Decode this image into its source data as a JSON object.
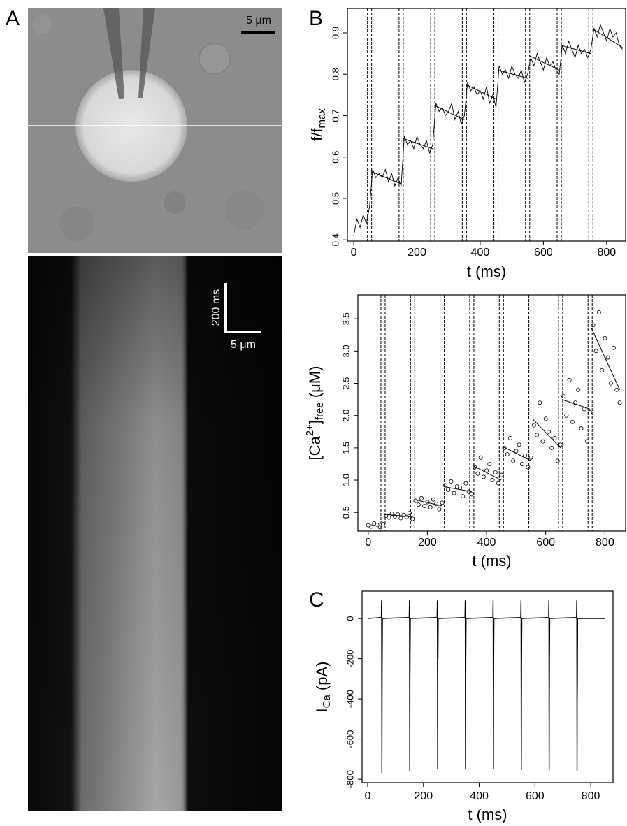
{
  "panel_labels": [
    "A",
    "B",
    "C"
  ],
  "image_labels": {
    "scale_top": "5 μm",
    "scale_time": "200 ms",
    "scale_space": "5 μm"
  },
  "chart_data": [
    {
      "type": "line",
      "x_label": "t (ms)",
      "y_label": [
        "f/f",
        "max"
      ],
      "xlim": [
        -20,
        860
      ],
      "ylim": [
        0.397,
        0.959
      ],
      "xticks": [
        0,
        200,
        400,
        600,
        800
      ],
      "yticks": [
        0.4,
        0.5,
        0.6,
        0.7,
        0.8,
        0.9
      ],
      "vlines": [
        50,
        150,
        250,
        350,
        450,
        550,
        650,
        750
      ],
      "x": [
        0,
        10,
        20,
        30,
        40,
        50,
        60,
        70,
        80,
        90,
        100,
        110,
        120,
        130,
        140,
        150,
        160,
        170,
        180,
        190,
        200,
        210,
        220,
        230,
        240,
        250,
        260,
        270,
        280,
        290,
        300,
        310,
        320,
        330,
        340,
        350,
        360,
        370,
        380,
        390,
        400,
        410,
        420,
        430,
        440,
        450,
        460,
        470,
        480,
        490,
        500,
        510,
        520,
        530,
        540,
        550,
        560,
        570,
        580,
        590,
        600,
        610,
        620,
        630,
        640,
        650,
        660,
        670,
        680,
        690,
        700,
        710,
        720,
        730,
        740,
        750,
        760,
        770,
        780,
        790,
        800,
        810,
        820,
        830,
        840,
        850
      ],
      "values": [
        0.41,
        0.45,
        0.43,
        0.46,
        0.44,
        0.48,
        0.57,
        0.55,
        0.56,
        0.55,
        0.57,
        0.54,
        0.56,
        0.53,
        0.55,
        0.53,
        0.65,
        0.63,
        0.64,
        0.62,
        0.65,
        0.63,
        0.62,
        0.64,
        0.61,
        0.63,
        0.73,
        0.71,
        0.72,
        0.7,
        0.71,
        0.73,
        0.69,
        0.71,
        0.68,
        0.7,
        0.78,
        0.76,
        0.77,
        0.75,
        0.76,
        0.74,
        0.77,
        0.73,
        0.75,
        0.72,
        0.82,
        0.8,
        0.81,
        0.79,
        0.82,
        0.8,
        0.79,
        0.81,
        0.78,
        0.8,
        0.84,
        0.82,
        0.85,
        0.83,
        0.81,
        0.84,
        0.82,
        0.83,
        0.81,
        0.8,
        0.87,
        0.85,
        0.88,
        0.86,
        0.84,
        0.87,
        0.85,
        0.86,
        0.84,
        0.86,
        0.91,
        0.89,
        0.92,
        0.9,
        0.88,
        0.91,
        0.89,
        0.9,
        0.87,
        0.86
      ],
      "fits": [
        {
          "x": [
            55,
            150
          ],
          "values": [
            0.565,
            0.535
          ]
        },
        {
          "x": [
            155,
            250
          ],
          "values": [
            0.645,
            0.62
          ]
        },
        {
          "x": [
            255,
            350
          ],
          "values": [
            0.725,
            0.69
          ]
        },
        {
          "x": [
            355,
            450
          ],
          "values": [
            0.775,
            0.74
          ]
        },
        {
          "x": [
            455,
            550
          ],
          "values": [
            0.81,
            0.79
          ]
        },
        {
          "x": [
            555,
            650
          ],
          "values": [
            0.845,
            0.81
          ]
        },
        {
          "x": [
            655,
            750
          ],
          "values": [
            0.87,
            0.85
          ]
        },
        {
          "x": [
            755,
            850
          ],
          "values": [
            0.91,
            0.865
          ]
        }
      ]
    },
    {
      "type": "scatter",
      "x_label": "t (ms)",
      "y_label": [
        "[Ca",
        "2+",
        "]",
        "free",
        "(μM)"
      ],
      "xlim": [
        -35,
        870
      ],
      "ylim": [
        0.21,
        3.87
      ],
      "xticks": [
        0,
        200,
        400,
        600,
        800
      ],
      "yticks": [
        0.5,
        {
          "value": 1,
          "label": "1.0"
        },
        1.5,
        {
          "value": 2,
          "label": "2.0"
        },
        2.5,
        {
          "value": 3,
          "label": "3.0"
        },
        3.5
      ],
      "vlines": [
        50,
        150,
        250,
        350,
        450,
        550,
        650,
        750
      ],
      "x": [
        0,
        10,
        20,
        30,
        40,
        50,
        60,
        70,
        80,
        90,
        100,
        110,
        120,
        130,
        140,
        150,
        160,
        170,
        180,
        190,
        200,
        210,
        220,
        230,
        240,
        250,
        260,
        270,
        280,
        290,
        300,
        310,
        320,
        330,
        340,
        350,
        360,
        370,
        380,
        390,
        400,
        410,
        420,
        430,
        440,
        450,
        460,
        470,
        480,
        490,
        500,
        510,
        520,
        530,
        540,
        550,
        560,
        570,
        580,
        590,
        600,
        610,
        620,
        630,
        640,
        650,
        660,
        670,
        680,
        690,
        700,
        710,
        720,
        730,
        740,
        750,
        760,
        770,
        780,
        790,
        800,
        810,
        820,
        830,
        840,
        850
      ],
      "values": [
        0.3,
        0.28,
        0.33,
        0.31,
        0.27,
        0.32,
        0.45,
        0.42,
        0.48,
        0.44,
        0.47,
        0.41,
        0.46,
        0.43,
        0.49,
        0.4,
        0.68,
        0.62,
        0.72,
        0.6,
        0.66,
        0.58,
        0.7,
        0.63,
        0.55,
        0.65,
        0.92,
        0.85,
        0.98,
        0.8,
        0.9,
        0.88,
        0.75,
        0.95,
        0.82,
        0.78,
        1.2,
        1.1,
        1.35,
        1.05,
        1.15,
        1.25,
        1.0,
        1.12,
        0.95,
        1.08,
        1.5,
        1.4,
        1.65,
        1.3,
        1.45,
        1.55,
        1.25,
        1.38,
        1.2,
        1.35,
        1.85,
        1.7,
        2.2,
        1.6,
        1.95,
        1.75,
        1.5,
        1.65,
        1.3,
        1.55,
        2.3,
        2.0,
        2.55,
        1.9,
        2.2,
        2.4,
        1.8,
        2.1,
        1.6,
        2.05,
        3.4,
        3.0,
        3.6,
        2.7,
        3.2,
        2.9,
        2.5,
        3.05,
        2.4,
        2.2
      ],
      "fits": [
        {
          "x": [
            55,
            150
          ],
          "values": [
            0.47,
            0.43
          ]
        },
        {
          "x": [
            155,
            250
          ],
          "values": [
            0.7,
            0.6
          ]
        },
        {
          "x": [
            255,
            350
          ],
          "values": [
            0.9,
            0.82
          ]
        },
        {
          "x": [
            355,
            450
          ],
          "values": [
            1.22,
            1.0
          ]
        },
        {
          "x": [
            455,
            550
          ],
          "values": [
            1.52,
            1.3
          ]
        },
        {
          "x": [
            555,
            650
          ],
          "values": [
            1.95,
            1.5
          ]
        },
        {
          "x": [
            655,
            750
          ],
          "values": [
            2.25,
            2.1
          ]
        },
        {
          "x": [
            755,
            850
          ],
          "values": [
            3.35,
            2.4
          ]
        }
      ]
    },
    {
      "type": "line",
      "x_label": "t (ms)",
      "y_label": [
        "I",
        "Ca",
        "(pA)"
      ],
      "xlim": [
        -20,
        880
      ],
      "ylim": [
        -817,
        136
      ],
      "xticks": [
        0,
        200,
        400,
        600,
        800
      ],
      "yticks": [
        0,
        -200,
        -400,
        -600,
        -800
      ],
      "x": [
        0,
        49,
        50,
        51,
        51.5,
        52,
        53,
        149,
        150,
        151,
        151.5,
        152,
        153,
        249,
        250,
        251,
        251.5,
        252,
        253,
        349,
        350,
        351,
        351.5,
        352,
        353,
        449,
        450,
        451,
        451.5,
        452,
        453,
        549,
        550,
        551,
        551.5,
        552,
        553,
        649,
        650,
        651,
        651.5,
        652,
        653,
        749,
        750,
        751,
        751.5,
        752,
        753,
        850
      ],
      "values": [
        0,
        5,
        90,
        -770,
        -410,
        -220,
        0,
        5,
        90,
        -760,
        -330,
        -200,
        0,
        5,
        90,
        -750,
        -210,
        -200,
        0,
        5,
        90,
        -750,
        -400,
        -210,
        0,
        5,
        90,
        -750,
        -390,
        -200,
        0,
        5,
        90,
        -755,
        -410,
        -210,
        0,
        5,
        90,
        -755,
        -400,
        -200,
        0,
        5,
        90,
        -760,
        -410,
        -320,
        0,
        0
      ]
    }
  ]
}
